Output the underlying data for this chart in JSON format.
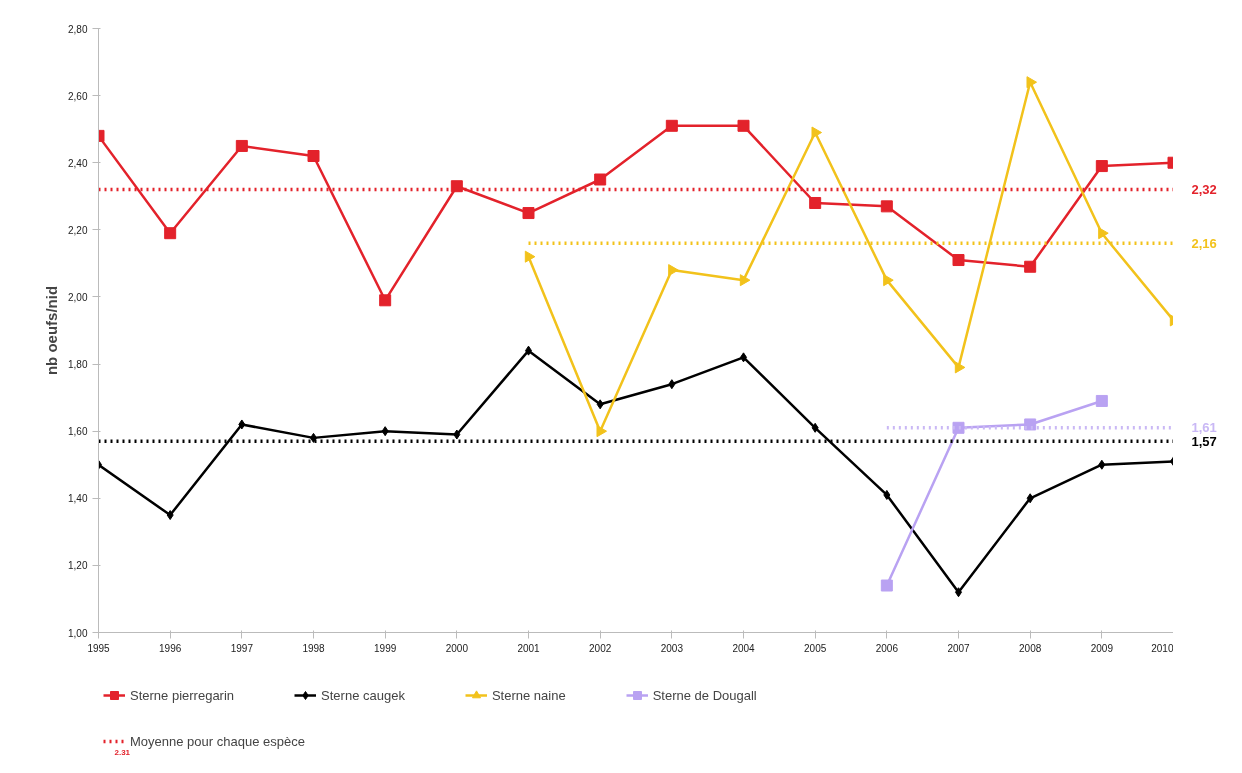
{
  "chart_data": {
    "type": "line",
    "ylabel": "nb oeufs/nid",
    "x": [
      1995,
      1996,
      1997,
      1998,
      1999,
      2000,
      2001,
      2002,
      2003,
      2004,
      2005,
      2006,
      2007,
      2008,
      2009,
      2010
    ],
    "xlim": [
      1995,
      2010
    ],
    "xticks": [
      1995,
      1996,
      1997,
      1998,
      1999,
      2000,
      2001,
      2002,
      2003,
      2004,
      2005,
      2006,
      2007,
      2008,
      2009,
      2010
    ],
    "ylim": [
      1.0,
      2.8
    ],
    "yticks": [
      {
        "value": 1.0,
        "label": "1,00"
      },
      {
        "value": 1.2,
        "label": "1,20"
      },
      {
        "value": 1.4,
        "label": "1,40"
      },
      {
        "value": 1.6,
        "label": "1,60"
      },
      {
        "value": 1.8,
        "label": "1,80"
      },
      {
        "value": 2.0,
        "label": "2,00"
      },
      {
        "value": 2.2,
        "label": "2,20"
      },
      {
        "value": 2.4,
        "label": "2,40"
      },
      {
        "value": 2.6,
        "label": "2,60"
      },
      {
        "value": 2.8,
        "label": "2,80"
      }
    ],
    "grid": false,
    "legend": "bottom",
    "line_style": "solid",
    "series": [
      {
        "name": "Sterne pierregarin",
        "color": "#e3222b",
        "marker": "square",
        "values": [
          2.48,
          2.19,
          2.45,
          2.42,
          1.99,
          2.33,
          2.25,
          2.35,
          2.51,
          2.51,
          2.28,
          2.27,
          2.11,
          2.09,
          2.39,
          2.4
        ]
      },
      {
        "name": "Sterne caugek",
        "color": "#000000",
        "marker": "diamond",
        "values": [
          1.5,
          1.35,
          1.62,
          1.58,
          1.6,
          1.59,
          1.84,
          1.68,
          1.74,
          1.82,
          1.61,
          1.41,
          1.12,
          1.4,
          1.5,
          1.51
        ]
      },
      {
        "name": "Sterne naine",
        "color": "#f2c21b",
        "marker": "triangle",
        "values": [
          null,
          null,
          null,
          null,
          null,
          null,
          2.12,
          1.6,
          2.08,
          2.05,
          2.49,
          2.05,
          1.79,
          2.64,
          2.19,
          1.93
        ]
      },
      {
        "name": "Sterne de Dougall",
        "color": "#b9a2f2",
        "marker": "square",
        "values": [
          null,
          null,
          null,
          null,
          null,
          null,
          null,
          null,
          null,
          null,
          null,
          1.14,
          1.61,
          1.62,
          1.69,
          null
        ]
      },
      {
        "name": "Moyenne pour chaque espèce",
        "color": "#e3222b",
        "line_style": "dotted",
        "marker": "none",
        "x": [
          1995,
          2010
        ],
        "values": [
          2.32,
          2.32
        ]
      },
      {
        "color": "#000000",
        "line_style": "dotted",
        "marker": "none",
        "x": [
          1995,
          2010
        ],
        "values": [
          1.57,
          1.57
        ]
      },
      {
        "color": "#f2c21b",
        "line_style": "dotted",
        "marker": "none",
        "x": [
          2001,
          2010
        ],
        "values": [
          2.16,
          2.16
        ]
      },
      {
        "color": "#c9b8f5",
        "line_style": "dotted",
        "marker": "none",
        "x": [
          2006,
          2010
        ],
        "values": [
          1.61,
          1.61
        ]
      }
    ],
    "annotations": [
      "2,32",
      "1,57",
      "2,16",
      "1,61",
      "2,31"
    ]
  }
}
